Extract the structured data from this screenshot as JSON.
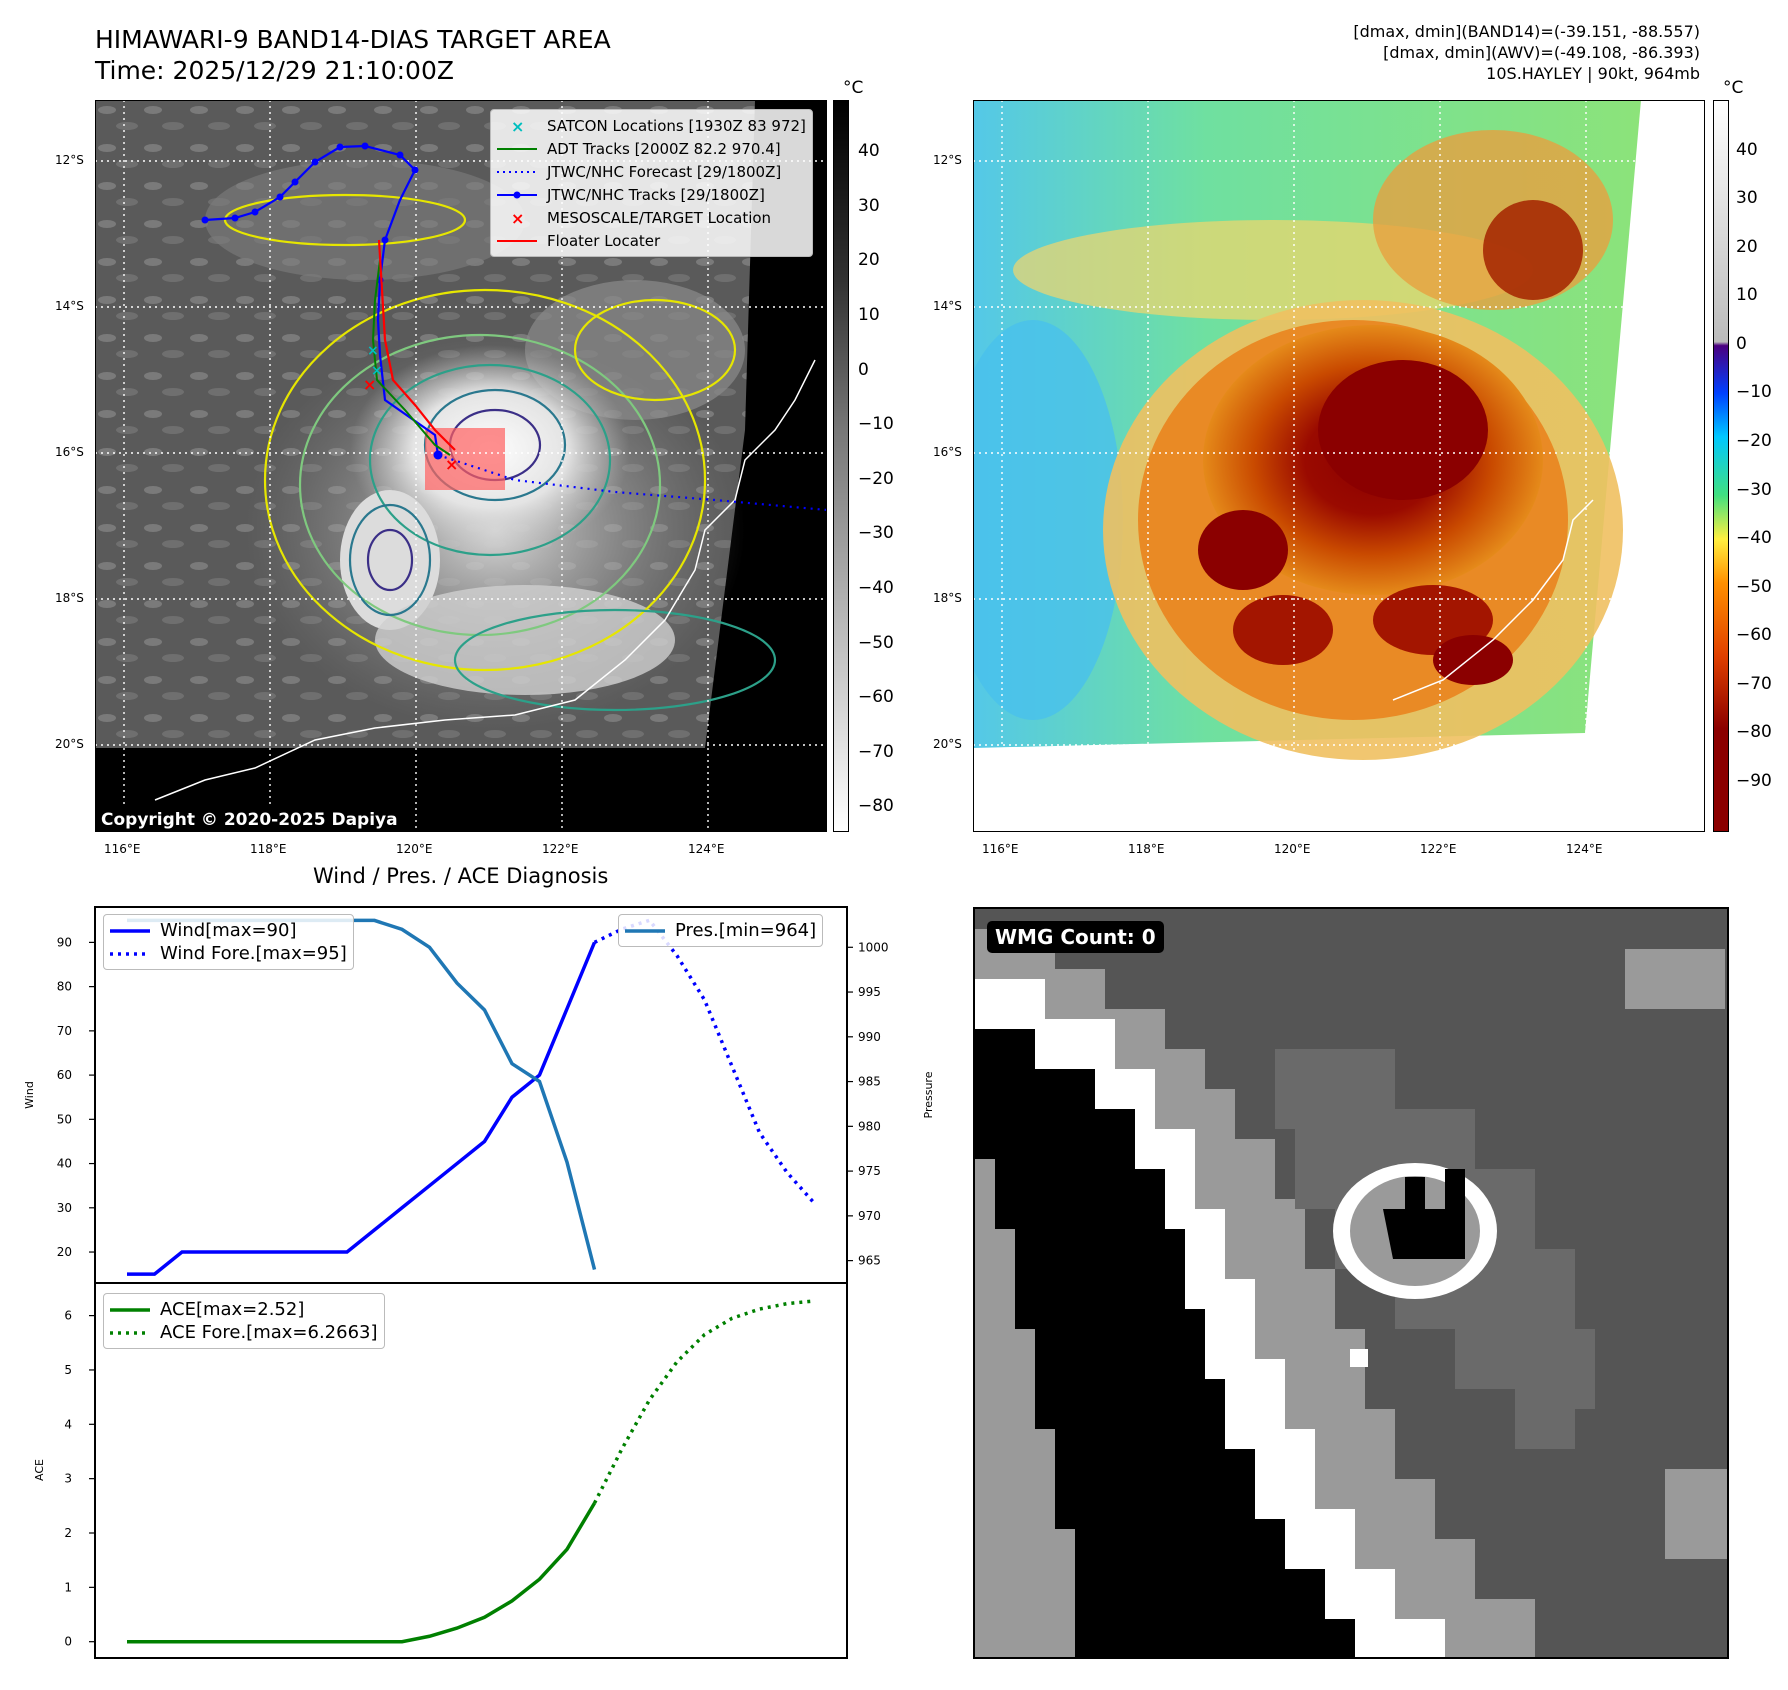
{
  "header": {
    "title_line1": "HIMAWARI-9 BAND14-DIAS TARGET AREA",
    "title_line2": "Time: 2025/12/29 21:10:00Z",
    "info_line1": "[dmax, dmin](BAND14)=(-39.151, -88.557)",
    "info_line2": "[dmax, dmin](AWV)=(-49.108, -86.393)",
    "info_line3": "10S.HAYLEY | 90kt, 964mb"
  },
  "map": {
    "lat_labels": [
      "12°S",
      "14°S",
      "16°S",
      "18°S",
      "20°S"
    ],
    "lon_labels": [
      "116°E",
      "118°E",
      "120°E",
      "122°E",
      "124°E"
    ],
    "copyright": "Copyright © 2020-2025 Dapiya",
    "legend": [
      {
        "label": "SATCON Locations [1930Z 83 972]",
        "color": "#00bfbf"
      },
      {
        "label": "ADT Tracks [2000Z 82.2 970.4]",
        "color": "#008000"
      },
      {
        "label": "JTWC/NHC Forecast [29/1800Z]",
        "color": "#0000ff"
      },
      {
        "label": "JTWC/NHC Tracks [29/1800Z]",
        "color": "#0000ff"
      },
      {
        "label": "MESOSCALE/TARGET Location",
        "color": "#ff0000"
      },
      {
        "label": "Floater Locater",
        "color": "#ff0000"
      }
    ]
  },
  "colorbar_gray": {
    "unit": "°C",
    "ticks": [
      "40",
      "30",
      "20",
      "10",
      "0",
      "−10",
      "−20",
      "−30",
      "−40",
      "−50",
      "−60",
      "−70",
      "−80"
    ]
  },
  "colorbar_color": {
    "unit": "°C",
    "ticks": [
      "40",
      "30",
      "20",
      "10",
      "0",
      "−10",
      "−20",
      "−30",
      "−40",
      "−50",
      "−60",
      "−70",
      "−80",
      "−90"
    ]
  },
  "diagnosis": {
    "title": "Wind / Pres. / ACE Diagnosis",
    "wind_ylabel": "Wind",
    "pres_ylabel": "Pressure",
    "ace_ylabel": "ACE",
    "wind_ticks": [
      "90",
      "80",
      "70",
      "60",
      "50",
      "40",
      "30",
      "20"
    ],
    "pres_ticks": [
      "1000",
      "995",
      "990",
      "985",
      "980",
      "975",
      "970",
      "965"
    ],
    "ace_ticks": [
      "6",
      "5",
      "4",
      "3",
      "2",
      "1",
      "0"
    ],
    "legend_wind": "Wind[max=90]",
    "legend_wind_fore": "Wind Fore.[max=95]",
    "legend_pres": "Pres.[min=964]",
    "legend_ace": "ACE[max=2.52]",
    "legend_ace_fore": "ACE Fore.[max=6.2663]"
  },
  "wmg": {
    "badge": "WMG Count: 0"
  },
  "chart_data": [
    {
      "type": "line",
      "title": "Wind / Pres. / ACE Diagnosis",
      "ylabel": "Wind",
      "ylim": [
        13,
        98
      ],
      "series": [
        {
          "name": "Wind[max=90]",
          "style": "solid",
          "color": "#0000ff",
          "x": [
            0,
            1,
            2,
            3,
            4,
            5,
            6,
            7,
            8,
            9,
            10,
            11,
            12,
            13,
            14,
            15,
            16,
            17
          ],
          "values": [
            15,
            15,
            20,
            20,
            20,
            20,
            20,
            20,
            20,
            25,
            30,
            35,
            40,
            45,
            55,
            60,
            75,
            90
          ]
        },
        {
          "name": "Wind Fore.[max=95]",
          "style": "dotted",
          "color": "#0000ff",
          "x": [
            17,
            18,
            19,
            20,
            21,
            22,
            23,
            24,
            25
          ],
          "values": [
            90,
            93,
            95,
            87,
            77,
            62,
            47,
            38,
            31
          ]
        }
      ]
    },
    {
      "type": "line",
      "ylabel": "Pressure",
      "ylim": [
        962.5,
        1004.5
      ],
      "series": [
        {
          "name": "Pres.[min=964]",
          "style": "solid",
          "color": "#1f77b4",
          "x": [
            0,
            1,
            2,
            3,
            4,
            5,
            6,
            7,
            8,
            9,
            10,
            11,
            12,
            13,
            14,
            15,
            16,
            17
          ],
          "values": [
            1003,
            1003,
            1003,
            1003,
            1003,
            1003,
            1003,
            1003,
            1003,
            1003,
            1002,
            1000,
            996,
            993,
            987,
            985,
            976,
            964
          ]
        }
      ]
    },
    {
      "type": "line",
      "ylabel": "ACE",
      "ylim": [
        -0.3,
        6.6
      ],
      "series": [
        {
          "name": "ACE[max=2.52]",
          "style": "solid",
          "color": "#008000",
          "x": [
            0,
            1,
            2,
            3,
            4,
            5,
            6,
            7,
            8,
            9,
            10,
            11,
            12,
            13,
            14,
            15,
            16,
            17
          ],
          "values": [
            0,
            0,
            0,
            0,
            0,
            0,
            0,
            0,
            0,
            0,
            0,
            0.1,
            0.25,
            0.45,
            0.75,
            1.15,
            1.7,
            2.55
          ]
        },
        {
          "name": "ACE Fore.[max=6.2663]",
          "style": "dotted",
          "color": "#008000",
          "x": [
            17,
            18,
            19,
            20,
            21,
            22,
            23,
            24,
            25
          ],
          "values": [
            2.55,
            3.55,
            4.45,
            5.15,
            5.65,
            5.95,
            6.12,
            6.22,
            6.27
          ]
        }
      ]
    }
  ]
}
